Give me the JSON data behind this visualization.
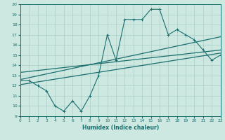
{
  "title": "",
  "xlabel": "Humidex (Indice chaleur)",
  "xlim": [
    0,
    23
  ],
  "ylim": [
    9,
    20
  ],
  "yticks": [
    9,
    10,
    11,
    12,
    13,
    14,
    15,
    16,
    17,
    18,
    19,
    20
  ],
  "xticks": [
    0,
    1,
    2,
    3,
    4,
    5,
    6,
    7,
    8,
    9,
    10,
    11,
    12,
    13,
    14,
    15,
    16,
    17,
    18,
    19,
    20,
    21,
    22,
    23
  ],
  "bg_color": "#cce8e0",
  "grid_color": "#aacfc8",
  "line_color": "#1a6e6e",
  "main_x": [
    0,
    1,
    2,
    3,
    4,
    5,
    6,
    7,
    8,
    9,
    10,
    11,
    12,
    13,
    14,
    15,
    16,
    17,
    18,
    19,
    20,
    21,
    22,
    23
  ],
  "main_y": [
    12.5,
    12.5,
    12.0,
    11.5,
    10.0,
    9.5,
    10.5,
    9.5,
    11.0,
    13.0,
    17.0,
    14.5,
    18.5,
    18.5,
    18.5,
    19.5,
    19.5,
    17.0,
    17.5,
    17.0,
    16.5,
    15.5,
    14.5,
    15.0
  ],
  "trend1_x": [
    0,
    23
  ],
  "trend1_y": [
    12.6,
    16.8
  ],
  "trend2_x": [
    0,
    23
  ],
  "trend2_y": [
    13.3,
    15.5
  ],
  "trend3_x": [
    0,
    23
  ],
  "trend3_y": [
    12.1,
    15.2
  ]
}
